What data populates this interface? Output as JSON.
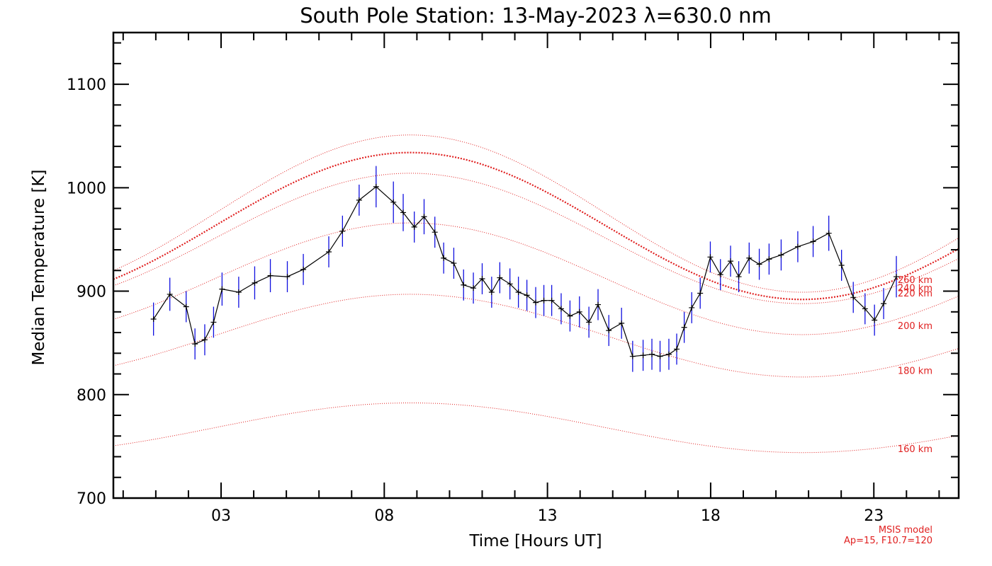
{
  "chart_data": {
    "type": "line",
    "title": "South Pole Station: 13-May-2023 λ=630.0 nm",
    "xlabel": "Time [Hours UT]",
    "ylabel": "Median Temperature [K]",
    "xlim": [
      -0.3,
      25.6
    ],
    "ylim": [
      700,
      1150
    ],
    "x_ticks": [
      {
        "value": 3,
        "label": "03"
      },
      {
        "value": 8,
        "label": "08"
      },
      {
        "value": 13,
        "label": "13"
      },
      {
        "value": 18,
        "label": "18"
      },
      {
        "value": 23,
        "label": "23"
      }
    ],
    "y_ticks": [
      {
        "value": 700,
        "label": "700"
      },
      {
        "value": 800,
        "label": "800"
      },
      {
        "value": 900,
        "label": "900"
      },
      {
        "value": 1000,
        "label": "1000"
      },
      {
        "value": 1100,
        "label": "1100"
      }
    ],
    "grid": false,
    "series": [
      {
        "color": "#000000",
        "error_color": "#1010e0",
        "x": [
          0.93,
          1.43,
          1.93,
          2.2,
          2.5,
          2.77,
          3.03,
          3.54,
          4.03,
          4.51,
          5.03,
          5.52,
          6.3,
          6.72,
          7.23,
          7.75,
          8.28,
          8.58,
          8.92,
          9.22,
          9.55,
          9.82,
          10.13,
          10.43,
          10.73,
          11.0,
          11.29,
          11.54,
          11.85,
          12.11,
          12.37,
          12.64,
          12.89,
          13.13,
          13.42,
          13.69,
          13.98,
          14.27,
          14.55,
          14.88,
          15.27,
          15.61,
          15.93,
          16.2,
          16.45,
          16.72,
          16.96,
          17.19,
          17.42,
          17.68,
          17.99,
          18.3,
          18.61,
          18.86,
          19.18,
          19.49,
          19.79,
          20.16,
          20.67,
          21.14,
          21.62,
          22.01,
          22.37,
          22.73,
          23.02,
          23.3,
          23.69
        ],
        "y": [
          873,
          897,
          885,
          849,
          853,
          870,
          902,
          899,
          908,
          915,
          914,
          921,
          938,
          958,
          988,
          1001,
          986,
          976,
          962,
          972,
          957,
          932,
          927,
          906,
          903,
          912,
          899,
          913,
          907,
          899,
          896,
          889,
          891,
          891,
          883,
          876,
          880,
          870,
          887,
          862,
          869,
          837,
          838,
          839,
          837,
          839,
          844,
          865,
          884,
          898,
          933,
          916,
          929,
          914,
          932,
          926,
          931,
          935,
          943,
          948,
          956,
          925,
          894,
          883,
          872,
          888,
          914
        ],
        "err": [
          16,
          16,
          15,
          15,
          15,
          15,
          16,
          15,
          16,
          16,
          15,
          15,
          15,
          15,
          15,
          20,
          20,
          18,
          15,
          17,
          15,
          15,
          15,
          15,
          15,
          15,
          15,
          15,
          15,
          15,
          15,
          15,
          15,
          15,
          15,
          15,
          15,
          15,
          15,
          15,
          15,
          15,
          15,
          15,
          15,
          15,
          15,
          15,
          15,
          15,
          15,
          15,
          15,
          15,
          15,
          15,
          15,
          15,
          15,
          15,
          17,
          15,
          15,
          15,
          15,
          15,
          20
        ]
      }
    ],
    "model_curves": [
      {
        "label": "160 km",
        "color": "#e02020",
        "base": 768,
        "amp": 24,
        "peak_hour": 8.8,
        "emphasis": false
      },
      {
        "label": "180 km",
        "color": "#e02020",
        "base": 857,
        "amp": 40,
        "peak_hour": 8.8,
        "emphasis": false
      },
      {
        "label": "200 km",
        "color": "#e02020",
        "base": 912,
        "amp": 54,
        "peak_hour": 8.8,
        "emphasis": false
      },
      {
        "label": "220 km",
        "color": "#e02020",
        "base": 951,
        "amp": 63,
        "peak_hour": 8.8,
        "emphasis": false
      },
      {
        "label": "240 km",
        "color": "#e02020",
        "base": 963,
        "amp": 71,
        "peak_hour": 8.8,
        "emphasis": true
      },
      {
        "label": "260 km",
        "color": "#e02020",
        "base": 975,
        "amp": 76,
        "peak_hour": 8.8,
        "emphasis": false
      }
    ],
    "model_note": [
      "MSIS model",
      "Ap=15, F10.7=120"
    ]
  }
}
